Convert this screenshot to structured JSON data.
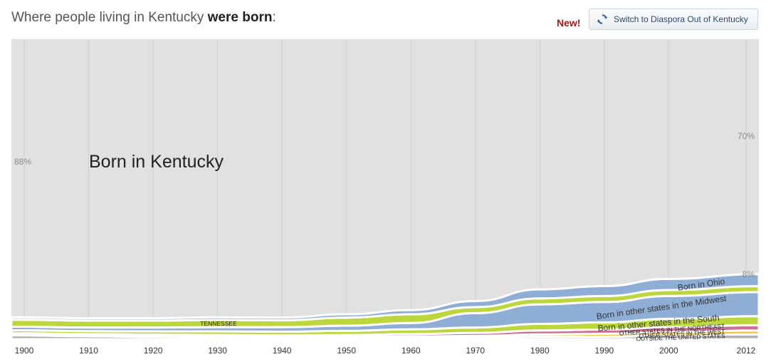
{
  "header": {
    "title_prefix": "Where people living in Kentucky ",
    "title_bold": "were born",
    "title_suffix": ":",
    "new_label": "New!",
    "switch_button_label": "Switch to Diaspora Out of Kentucky",
    "switch_icon": "refresh-icon"
  },
  "chart_data": {
    "type": "area",
    "title": "Where people living in Kentucky were born:",
    "x": [
      1900,
      1910,
      1920,
      1930,
      1940,
      1950,
      1960,
      1970,
      1980,
      1990,
      2000,
      2012
    ],
    "x_ticks": [
      "1900",
      "1910",
      "1920",
      "1930",
      "1940",
      "1950",
      "1960",
      "1970",
      "1980",
      "1990",
      "2000",
      "2012"
    ],
    "ylim": [
      0,
      100
    ],
    "grid": true,
    "stack_order": "bottom-to-top",
    "series": [
      {
        "name": "OUTSIDE THE UNITED STATES",
        "color": "#b5b0b0",
        "values": [
          1.3,
          1.0,
          0.8,
          0.7,
          0.6,
          0.5,
          0.5,
          0.6,
          0.8,
          0.8,
          1.3,
          1.6
        ]
      },
      {
        "name": "OTHER STATES IN THE WEST",
        "color": "#f5c53b",
        "values": [
          0.2,
          0.2,
          0.2,
          0.2,
          0.2,
          0.3,
          0.4,
          0.5,
          0.8,
          1.0,
          1.1,
          1.3
        ]
      },
      {
        "name": "OTHER STATES IN THE NORTHEAST",
        "color": "#cd7194",
        "values": [
          0.5,
          0.5,
          0.5,
          0.5,
          0.5,
          0.6,
          0.8,
          1.0,
          1.3,
          1.4,
          1.6,
          1.8
        ]
      },
      {
        "name": "Born in other states in the South",
        "color": "#bcd73c",
        "values": [
          1.0,
          1.0,
          1.1,
          1.2,
          1.2,
          1.4,
          1.6,
          1.8,
          2.2,
          2.4,
          2.8,
          3.0
        ]
      },
      {
        "name": "Born in other states in the Midwest",
        "color": "#8eaed6",
        "values": [
          1.2,
          1.2,
          1.3,
          1.4,
          1.5,
          1.7,
          2.1,
          4.8,
          6.5,
          6.8,
          7.6,
          8.0
        ]
      },
      {
        "name": "TENNESSEE",
        "color": "#bcd73c",
        "values": [
          2.3,
          2.3,
          2.3,
          2.4,
          2.3,
          2.7,
          2.9,
          2.0,
          2.0,
          2.0,
          2.0,
          2.0
        ]
      },
      {
        "name": "Born in Ohio",
        "color": "#8eaed6",
        "values": [
          0.8,
          0.8,
          0.8,
          0.9,
          0.9,
          1.1,
          1.4,
          2.0,
          3.0,
          3.3,
          3.7,
          4.0
        ]
      },
      {
        "name": "Born in Kentucky",
        "color": "#e1e1e1",
        "values": [
          88,
          88.2,
          88.0,
          87.8,
          87.7,
          86.3,
          84.1,
          82.3,
          78.4,
          77.5,
          74.6,
          70
        ]
      }
    ],
    "annotations": {
      "kentucky_start": "88%",
      "kentucky_end": "70%",
      "midwest_end": "8%"
    }
  }
}
